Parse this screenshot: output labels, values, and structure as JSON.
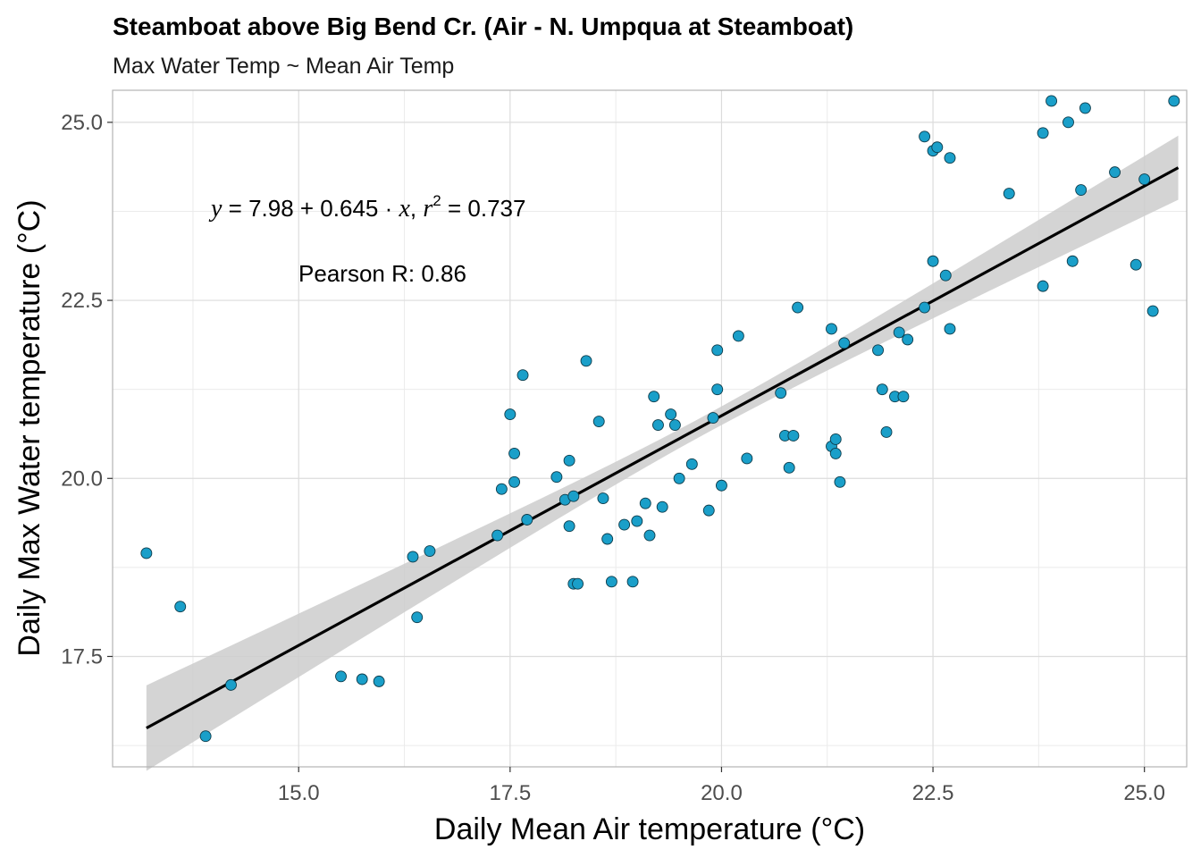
{
  "chart_data": {
    "type": "scatter",
    "title": "Steamboat above Big Bend Cr. (Air - N. Umpqua at Steamboat)",
    "subtitle": "Max Water Temp ~ Mean Air Temp",
    "xlabel": "Daily Mean Air temperature (°C)",
    "ylabel": "Daily Max Water temperature (°C)",
    "xlim": [
      12.8,
      25.5
    ],
    "ylim": [
      15.95,
      25.45
    ],
    "x_ticks": [
      15.0,
      17.5,
      20.0,
      22.5,
      25.0
    ],
    "y_ticks": [
      17.5,
      20.0,
      22.5,
      25.0
    ],
    "x_tick_labels": [
      "15.0",
      "17.5",
      "20.0",
      "22.5",
      "25.0"
    ],
    "y_tick_labels": [
      "17.5",
      "20.0",
      "22.5",
      "25.0"
    ],
    "grid": true,
    "point_color": "#1a9fc9",
    "line_color": "#000000",
    "band_color": "#cccccc",
    "regression": {
      "intercept": 7.98,
      "slope": 0.645,
      "x_range": [
        13.2,
        25.4
      ],
      "ci_at_ends": [
        0.6,
        0.45
      ],
      "ci_at_center": 0.13,
      "x_center": 19.8
    },
    "annotations": {
      "equation_y": "y",
      "equation_eq": " = 7.98 + 0.645 · ",
      "equation_x": "x",
      "equation_comma": ",  ",
      "equation_r": "r",
      "equation_sup": "2",
      "equation_r2_value": " = 0.737",
      "pearson": "Pearson R: 0.86"
    },
    "points": [
      [
        13.2,
        18.95
      ],
      [
        13.6,
        18.2
      ],
      [
        13.9,
        16.38
      ],
      [
        14.2,
        17.1
      ],
      [
        15.5,
        17.22
      ],
      [
        15.75,
        17.18
      ],
      [
        15.95,
        17.15
      ],
      [
        16.35,
        18.9
      ],
      [
        16.4,
        18.05
      ],
      [
        16.55,
        18.98
      ],
      [
        17.35,
        19.2
      ],
      [
        17.4,
        19.85
      ],
      [
        17.5,
        20.9
      ],
      [
        17.55,
        20.35
      ],
      [
        17.55,
        19.95
      ],
      [
        17.65,
        21.45
      ],
      [
        17.7,
        19.42
      ],
      [
        18.05,
        20.02
      ],
      [
        18.15,
        19.7
      ],
      [
        18.2,
        20.25
      ],
      [
        18.2,
        19.33
      ],
      [
        18.25,
        19.75
      ],
      [
        18.25,
        18.52
      ],
      [
        18.3,
        18.52
      ],
      [
        18.4,
        21.65
      ],
      [
        18.55,
        20.8
      ],
      [
        18.6,
        19.72
      ],
      [
        18.65,
        19.15
      ],
      [
        18.7,
        18.55
      ],
      [
        18.85,
        19.35
      ],
      [
        18.95,
        18.55
      ],
      [
        19.0,
        19.4
      ],
      [
        19.1,
        19.65
      ],
      [
        19.15,
        19.2
      ],
      [
        19.2,
        21.15
      ],
      [
        19.25,
        20.75
      ],
      [
        19.3,
        19.6
      ],
      [
        19.4,
        20.9
      ],
      [
        19.45,
        20.75
      ],
      [
        19.5,
        20.0
      ],
      [
        19.65,
        20.2
      ],
      [
        19.85,
        19.55
      ],
      [
        19.9,
        20.85
      ],
      [
        19.95,
        21.25
      ],
      [
        19.95,
        21.8
      ],
      [
        20.0,
        19.9
      ],
      [
        20.2,
        22.0
      ],
      [
        20.3,
        20.28
      ],
      [
        20.7,
        21.2
      ],
      [
        20.75,
        20.6
      ],
      [
        20.8,
        20.15
      ],
      [
        20.85,
        20.6
      ],
      [
        20.9,
        22.4
      ],
      [
        21.3,
        22.1
      ],
      [
        21.3,
        20.45
      ],
      [
        21.35,
        20.55
      ],
      [
        21.35,
        20.35
      ],
      [
        21.4,
        19.95
      ],
      [
        21.45,
        21.9
      ],
      [
        21.85,
        21.8
      ],
      [
        21.9,
        21.25
      ],
      [
        21.95,
        20.65
      ],
      [
        22.05,
        21.15
      ],
      [
        22.1,
        22.05
      ],
      [
        22.15,
        21.15
      ],
      [
        22.2,
        21.95
      ],
      [
        22.4,
        24.8
      ],
      [
        22.4,
        22.4
      ],
      [
        22.5,
        23.05
      ],
      [
        22.5,
        24.6
      ],
      [
        22.55,
        24.65
      ],
      [
        22.65,
        22.85
      ],
      [
        22.7,
        24.5
      ],
      [
        22.7,
        22.1
      ],
      [
        23.4,
        24.0
      ],
      [
        23.8,
        22.7
      ],
      [
        23.8,
        24.85
      ],
      [
        23.9,
        25.3
      ],
      [
        24.1,
        25.0
      ],
      [
        24.15,
        23.05
      ],
      [
        24.25,
        24.05
      ],
      [
        24.3,
        25.2
      ],
      [
        24.65,
        24.3
      ],
      [
        24.9,
        23.0
      ],
      [
        25.0,
        24.2
      ],
      [
        25.1,
        22.35
      ],
      [
        25.35,
        25.3
      ]
    ]
  }
}
